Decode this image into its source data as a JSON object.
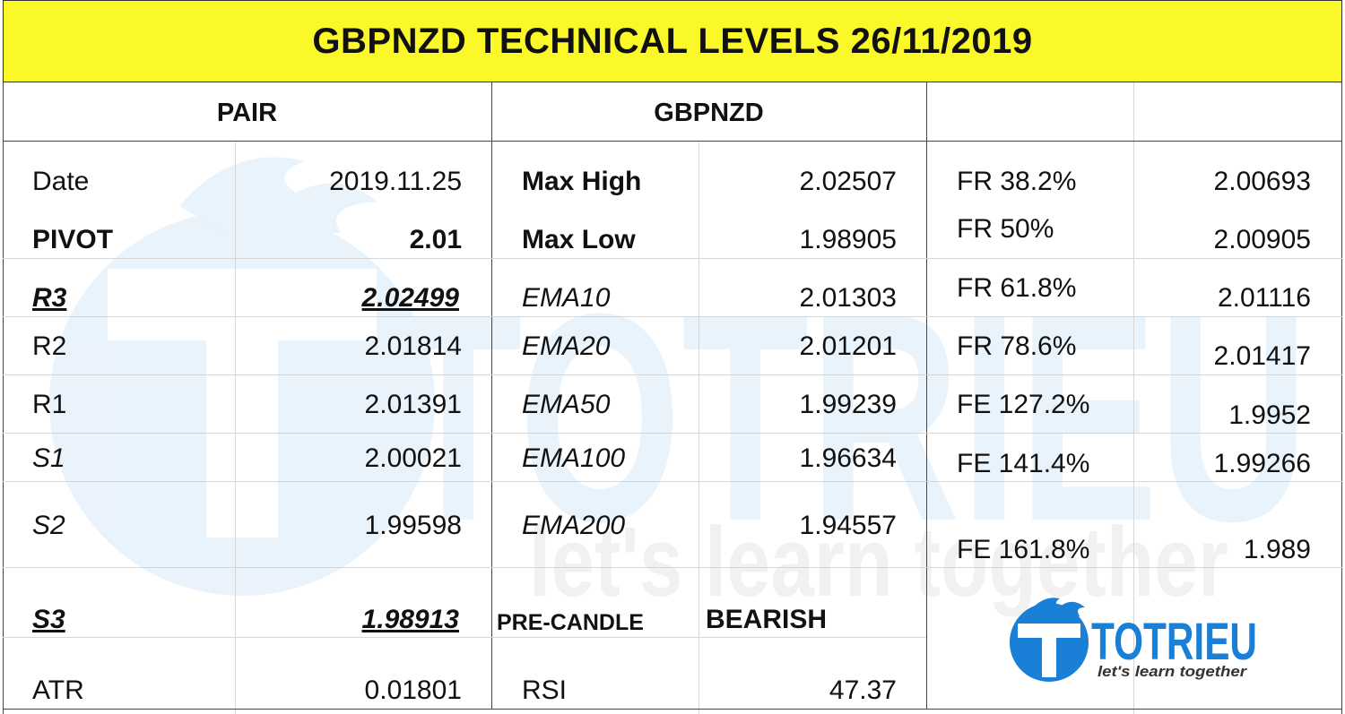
{
  "title": "GBPNZD TECHNICAL LEVELS 26/11/2019",
  "header": {
    "pair_label": "PAIR",
    "pair_value": "GBPNZD"
  },
  "left": [
    {
      "label": "Date",
      "value": "2019.11.25"
    },
    {
      "label": "PIVOT",
      "value": "2.01"
    },
    {
      "label": "R3",
      "value": "2.02499"
    },
    {
      "label": "R2",
      "value": "2.01814"
    },
    {
      "label": "R1",
      "value": "2.01391"
    },
    {
      "label": "S1",
      "value": "2.00021"
    },
    {
      "label": "S2",
      "value": "1.99598"
    },
    {
      "label": "S3",
      "value": "1.98913"
    },
    {
      "label": "ATR",
      "value": "0.01801"
    }
  ],
  "middle": [
    {
      "label": "Max High",
      "value": "2.02507"
    },
    {
      "label": "Max Low",
      "value": "1.98905"
    },
    {
      "label": "EMA10",
      "value": "2.01303"
    },
    {
      "label": "EMA20",
      "value": "2.01201"
    },
    {
      "label": "EMA50",
      "value": "1.99239"
    },
    {
      "label": "EMA100",
      "value": "1.96634"
    },
    {
      "label": "EMA200",
      "value": "1.94557"
    },
    {
      "label": "PRE-CANDLE",
      "value": "BEARISH"
    },
    {
      "label": "RSI",
      "value": "47.37"
    }
  ],
  "right": [
    {
      "label": "FR 38.2%",
      "value": "2.00693"
    },
    {
      "label": "FR 50%",
      "value": "2.00905"
    },
    {
      "label": "FR 61.8%",
      "value": "2.01116"
    },
    {
      "label": "FR 78.6%",
      "value": "2.01417"
    },
    {
      "label": "FE 127.2%",
      "value": "1.9952"
    },
    {
      "label": "FE 141.4%",
      "value": "1.99266"
    },
    {
      "label": "FE 161.8%",
      "value": "1.989"
    }
  ],
  "logo": {
    "brand": "TOTRIEU",
    "tagline": "let's learn together",
    "color": "#1a7fd6"
  },
  "watermark": {
    "brand": "TOTRIEU",
    "tagline": "let's learn together"
  }
}
